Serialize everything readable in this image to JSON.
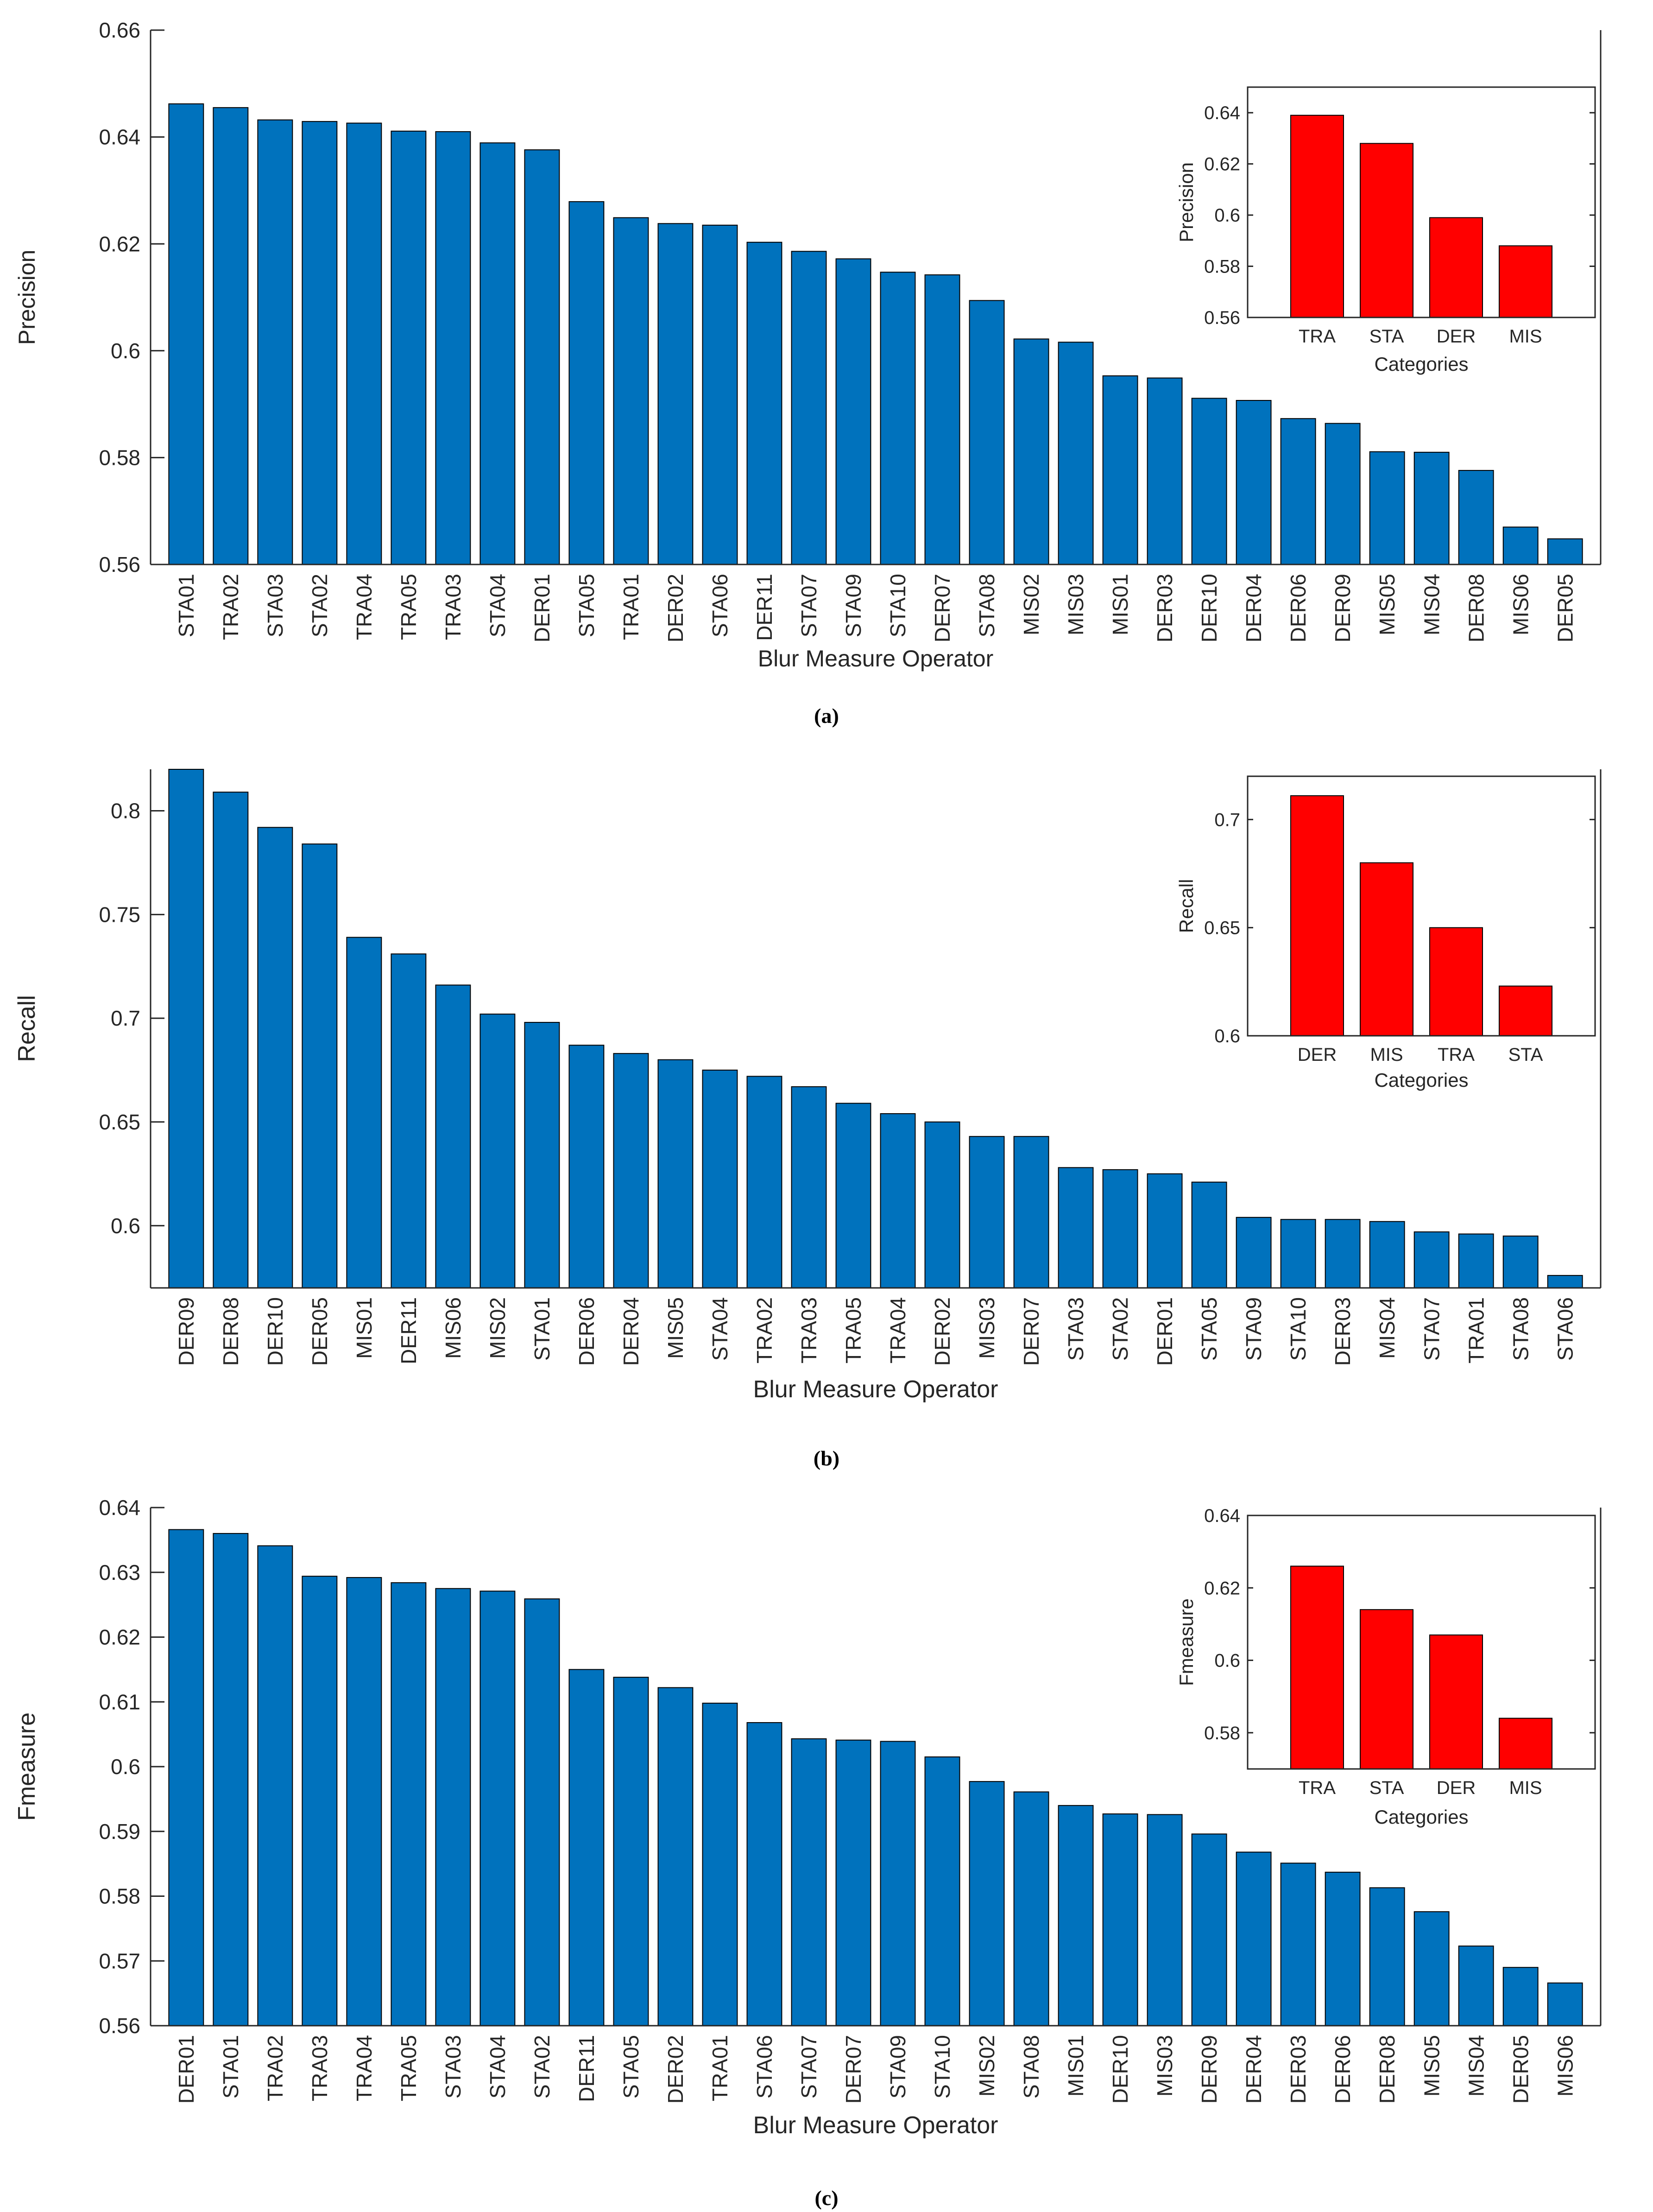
{
  "colors": {
    "main_bar": "#0072BD",
    "inset_bar": "#FF0000",
    "bar_edge": "#000000",
    "axis": "#262626"
  },
  "panels": [
    {
      "label": "(a)"
    },
    {
      "label": "(b)"
    },
    {
      "label": "(c)"
    }
  ],
  "chart_data": [
    {
      "type": "bar",
      "panel": "(a)",
      "title": "",
      "xlabel": "Blur Measure Operator",
      "ylabel": "Precision",
      "ylim": [
        0.56,
        0.66
      ],
      "yticks": [
        0.56,
        0.58,
        0.6,
        0.62,
        0.64,
        0.66
      ],
      "ytick_labels": [
        "0.56",
        "0.58",
        "0.6",
        "0.62",
        "0.64",
        "0.66"
      ],
      "categories": [
        "STA01",
        "TRA02",
        "STA03",
        "STA02",
        "TRA04",
        "TRA05",
        "TRA03",
        "STA04",
        "DER01",
        "STA05",
        "TRA01",
        "DER02",
        "STA06",
        "DER11",
        "STA07",
        "STA09",
        "STA10",
        "DER07",
        "STA08",
        "MIS02",
        "MIS03",
        "MIS01",
        "DER03",
        "DER10",
        "DER04",
        "DER06",
        "DER09",
        "MIS05",
        "MIS04",
        "DER08",
        "MIS06",
        "DER05"
      ],
      "values": [
        0.6462,
        0.6455,
        0.6432,
        0.6429,
        0.6426,
        0.6411,
        0.641,
        0.6389,
        0.6376,
        0.6279,
        0.6249,
        0.6238,
        0.6235,
        0.6203,
        0.6186,
        0.6172,
        0.6147,
        0.6142,
        0.6094,
        0.6022,
        0.6016,
        0.5953,
        0.5949,
        0.5911,
        0.5907,
        0.5873,
        0.5864,
        0.5811,
        0.581,
        0.5776,
        0.567,
        0.5648
      ]
    },
    {
      "type": "bar",
      "panel": "(a) inset",
      "xlabel": "Categories",
      "ylabel": "Precision",
      "ylim": [
        0.56,
        0.65
      ],
      "yticks": [
        0.56,
        0.58,
        0.6,
        0.62,
        0.64
      ],
      "ytick_labels": [
        "0.56",
        "0.58",
        "0.6",
        "0.62",
        "0.64"
      ],
      "categories": [
        "TRA",
        "STA",
        "DER",
        "MIS"
      ],
      "values": [
        0.639,
        0.628,
        0.599,
        0.588
      ]
    },
    {
      "type": "bar",
      "panel": "(b)",
      "xlabel": "Blur Measure Operator",
      "ylabel": "Recall",
      "ylim": [
        0.57,
        0.82
      ],
      "yticks": [
        0.6,
        0.65,
        0.7,
        0.75,
        0.8
      ],
      "ytick_labels": [
        "0.6",
        "0.65",
        "0.7",
        "0.75",
        "0.8"
      ],
      "categories": [
        "DER09",
        "DER08",
        "DER10",
        "DER05",
        "MIS01",
        "DER11",
        "MIS06",
        "MIS02",
        "STA01",
        "DER06",
        "DER04",
        "MIS05",
        "STA04",
        "TRA02",
        "TRA03",
        "TRA05",
        "TRA04",
        "DER02",
        "MIS03",
        "DER07",
        "STA03",
        "STA02",
        "DER01",
        "STA05",
        "STA09",
        "STA10",
        "DER03",
        "MIS04",
        "STA07",
        "TRA01",
        "STA08",
        "STA06"
      ],
      "values": [
        0.82,
        0.809,
        0.792,
        0.784,
        0.739,
        0.731,
        0.716,
        0.702,
        0.698,
        0.687,
        0.683,
        0.68,
        0.675,
        0.672,
        0.667,
        0.659,
        0.654,
        0.65,
        0.643,
        0.643,
        0.628,
        0.627,
        0.625,
        0.621,
        0.604,
        0.603,
        0.603,
        0.602,
        0.597,
        0.596,
        0.595,
        0.576
      ]
    },
    {
      "type": "bar",
      "panel": "(b) inset",
      "xlabel": "Categories",
      "ylabel": "Recall",
      "ylim": [
        0.6,
        0.72
      ],
      "yticks": [
        0.6,
        0.65,
        0.7
      ],
      "ytick_labels": [
        "0.6",
        "0.65",
        "0.7"
      ],
      "categories": [
        "DER",
        "MIS",
        "TRA",
        "STA"
      ],
      "values": [
        0.711,
        0.68,
        0.65,
        0.623
      ]
    },
    {
      "type": "bar",
      "panel": "(c)",
      "xlabel": "Blur Measure Operator",
      "ylabel": "Fmeasure",
      "ylim": [
        0.56,
        0.64
      ],
      "yticks": [
        0.56,
        0.57,
        0.58,
        0.59,
        0.6,
        0.61,
        0.62,
        0.63,
        0.64
      ],
      "ytick_labels": [
        "0.56",
        "0.57",
        "0.58",
        "0.59",
        "0.6",
        "0.61",
        "0.62",
        "0.63",
        "0.64"
      ],
      "categories": [
        "DER01",
        "STA01",
        "TRA02",
        "TRA03",
        "TRA04",
        "TRA05",
        "STA03",
        "STA04",
        "STA02",
        "DER11",
        "STA05",
        "DER02",
        "TRA01",
        "STA06",
        "STA07",
        "DER07",
        "STA09",
        "STA10",
        "MIS02",
        "STA08",
        "MIS01",
        "DER10",
        "MIS03",
        "DER09",
        "DER04",
        "DER03",
        "DER06",
        "DER08",
        "MIS05",
        "MIS04",
        "DER05",
        "MIS06"
      ],
      "values": [
        0.6366,
        0.636,
        0.6341,
        0.6294,
        0.6292,
        0.6284,
        0.6275,
        0.6271,
        0.6259,
        0.615,
        0.6138,
        0.6122,
        0.6098,
        0.6068,
        0.6043,
        0.6041,
        0.6039,
        0.6015,
        0.5977,
        0.5961,
        0.594,
        0.5927,
        0.5926,
        0.5896,
        0.5868,
        0.5851,
        0.5837,
        0.5813,
        0.5776,
        0.5723,
        0.569,
        0.5666
      ]
    },
    {
      "type": "bar",
      "panel": "(c) inset",
      "xlabel": "Categories",
      "ylabel": "Fmeasure",
      "ylim": [
        0.57,
        0.64
      ],
      "yticks": [
        0.58,
        0.6,
        0.62,
        0.64
      ],
      "ytick_labels": [
        "0.58",
        "0.6",
        "0.62",
        "0.64"
      ],
      "categories": [
        "TRA",
        "STA",
        "DER",
        "MIS"
      ],
      "values": [
        0.626,
        0.614,
        0.607,
        0.584
      ]
    }
  ]
}
